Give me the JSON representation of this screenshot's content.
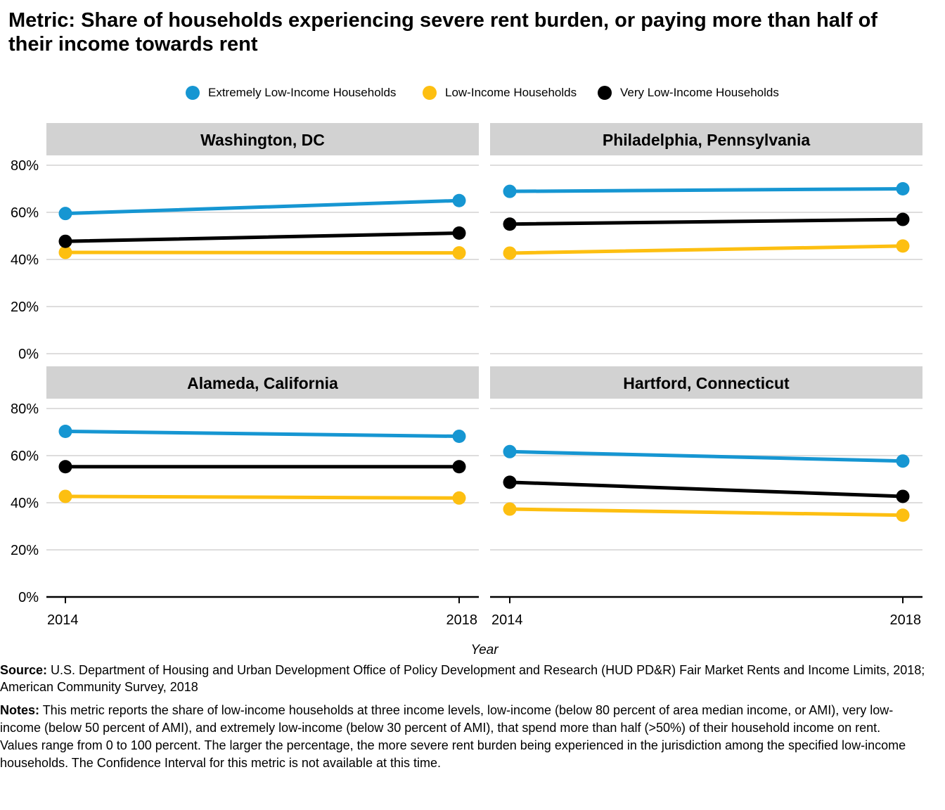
{
  "title": "Metric: Share of households experiencing severe rent burden, or paying more than half of their income towards rent",
  "legend": [
    {
      "label": "Extremely Low-Income Households",
      "color": "#1696d2"
    },
    {
      "label": "Low-Income Households",
      "color": "#fdbf11"
    },
    {
      "label": "Very Low-Income Households",
      "color": "#000000"
    }
  ],
  "chart_data": {
    "type": "line",
    "xlabel": "Year",
    "ylabel": "",
    "x": [
      2014,
      2018
    ],
    "x_tick_labels": [
      "2014",
      "2018"
    ],
    "ylim": [
      0,
      0.8
    ],
    "y_ticks": [
      0,
      0.2,
      0.4,
      0.6,
      0.8
    ],
    "y_tick_labels": [
      "0%",
      "20%",
      "40%",
      "60%",
      "80%"
    ],
    "grid": true,
    "legend_position": "top",
    "panels": [
      {
        "title": "Washington, DC",
        "series": [
          {
            "name": "Extremely Low-Income Households",
            "color": "#1696d2",
            "values": [
              0.595,
              0.65
            ]
          },
          {
            "name": "Low-Income Households",
            "color": "#fdbf11",
            "values": [
              0.43,
              0.428
            ]
          },
          {
            "name": "Very Low-Income Households",
            "color": "#000000",
            "values": [
              0.477,
              0.512
            ]
          }
        ]
      },
      {
        "title": "Philadelphia, Pennsylvania",
        "series": [
          {
            "name": "Extremely Low-Income Households",
            "color": "#1696d2",
            "values": [
              0.689,
              0.7
            ]
          },
          {
            "name": "Low-Income Households",
            "color": "#fdbf11",
            "values": [
              0.427,
              0.457
            ]
          },
          {
            "name": "Very Low-Income Households",
            "color": "#000000",
            "values": [
              0.55,
              0.57
            ]
          }
        ]
      },
      {
        "title": "Alameda, California",
        "series": [
          {
            "name": "Extremely Low-Income Households",
            "color": "#1696d2",
            "values": [
              0.703,
              0.682
            ]
          },
          {
            "name": "Low-Income Households",
            "color": "#fdbf11",
            "values": [
              0.427,
              0.42
            ]
          },
          {
            "name": "Very Low-Income Households",
            "color": "#000000",
            "values": [
              0.553,
              0.553
            ]
          }
        ]
      },
      {
        "title": "Hartford, Connecticut",
        "series": [
          {
            "name": "Extremely Low-Income Households",
            "color": "#1696d2",
            "values": [
              0.617,
              0.577
            ]
          },
          {
            "name": "Low-Income Households",
            "color": "#fdbf11",
            "values": [
              0.373,
              0.347
            ]
          },
          {
            "name": "Very Low-Income Households",
            "color": "#000000",
            "values": [
              0.487,
              0.427
            ]
          }
        ]
      }
    ]
  },
  "source": {
    "lead": "Source:",
    "text": " U.S. Department of Housing and Urban Development Office of Policy Development and Research (HUD PD&R) Fair Market Rents and Income Limits, 2018; American Community Survey, 2018"
  },
  "notes": {
    "lead": "Notes:",
    "text": " This metric reports the share of low-income households at three income levels, low-income (below 80 percent of area median income, or AMI), very low-income (below 50 percent of AMI), and extremely low-income (below 30 percent of AMI), that spend more than half (>50%) of their household income on rent. Values range from 0 to 100 percent. The larger the percentage, the more severe rent burden being experienced in the jurisdiction among the specified low-income households. The Confidence Interval for this metric is not available at this time."
  }
}
